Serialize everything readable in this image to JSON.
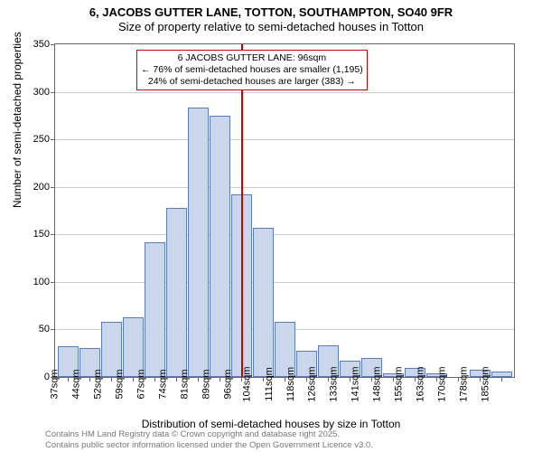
{
  "title_line1": "6, JACOBS GUTTER LANE, TOTTON, SOUTHAMPTON, SO40 9FR",
  "title_line2": "Size of property relative to semi-detached houses in Totton",
  "y_axis_label": "Number of semi-detached properties",
  "x_axis_label": "Distribution of semi-detached houses by size in Totton",
  "y_max": 350,
  "y_ticks": [
    0,
    50,
    100,
    150,
    200,
    250,
    300,
    350
  ],
  "bar_fill": "#c9d6ec",
  "bar_stroke": "#5b7cb8",
  "grid_color": "#cccccc",
  "axis_color": "#666666",
  "vline_color": "#cc0000",
  "vline_at_index": 8,
  "categories": [
    "37sqm",
    "44sqm",
    "52sqm",
    "59sqm",
    "67sqm",
    "74sqm",
    "81sqm",
    "89sqm",
    "96sqm",
    "104sqm",
    "111sqm",
    "118sqm",
    "126sqm",
    "133sqm",
    "141sqm",
    "148sqm",
    "155sqm",
    "163sqm",
    "170sqm",
    "178sqm",
    "185sqm"
  ],
  "values": [
    32,
    30,
    58,
    63,
    142,
    178,
    283,
    275,
    192,
    157,
    58,
    28,
    33,
    17,
    20,
    4,
    10,
    4,
    0,
    8,
    6
  ],
  "annotation": {
    "line1": "6 JACOBS GUTTER LANE: 96sqm",
    "line2": "← 76% of semi-detached houses are smaller (1,195)",
    "line3": "24% of semi-detached houses are larger (383) →",
    "border_color": "#cc0000"
  },
  "footer_line1": "Contains HM Land Registry data © Crown copyright and database right 2025.",
  "footer_line2": "Contains public sector information licensed under the Open Government Licence v3.0."
}
